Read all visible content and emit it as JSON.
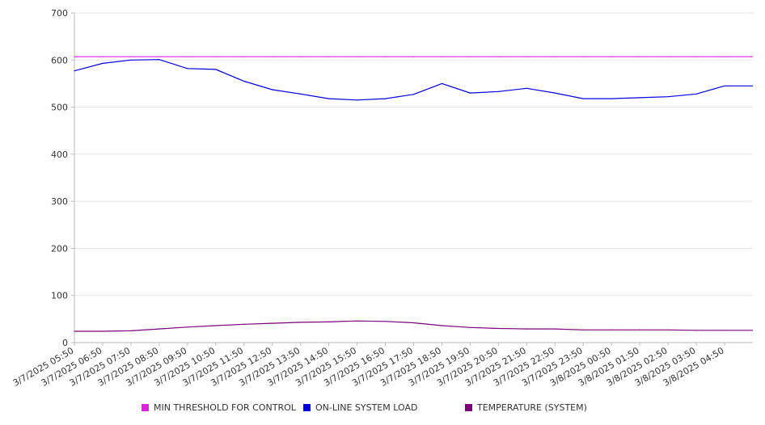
{
  "chart_data": {
    "type": "line",
    "title": "",
    "xlabel": "",
    "ylabel": "",
    "ylim": [
      0,
      700
    ],
    "yticks": [
      0,
      100,
      200,
      300,
      400,
      500,
      600,
      700
    ],
    "grid": true,
    "legend_position": "bottom",
    "x": [
      "3/7/2025 05:50",
      "3/7/2025 06:50",
      "3/7/2025 07:50",
      "3/7/2025 08:50",
      "3/7/2025 09:50",
      "3/7/2025 10:50",
      "3/7/2025 11:50",
      "3/7/2025 12:50",
      "3/7/2025 13:50",
      "3/7/2025 14:50",
      "3/7/2025 15:50",
      "3/7/2025 16:50",
      "3/7/2025 17:50",
      "3/7/2025 18:50",
      "3/7/2025 19:50",
      "3/7/2025 20:50",
      "3/7/2025 21:50",
      "3/7/2025 22:50",
      "3/7/2025 23:50",
      "3/8/2025 00:50",
      "3/8/2025 01:50",
      "3/8/2025 02:50",
      "3/8/2025 03:50",
      "3/8/2025 04:50"
    ],
    "series": [
      {
        "name": "MIN THRESHOLD FOR CONTROL",
        "color": "#e020e0",
        "values": [
          607,
          607,
          607,
          607,
          607,
          607,
          607,
          607,
          607,
          607,
          607,
          607,
          607,
          607,
          607,
          607,
          607,
          607,
          607,
          607,
          607,
          607,
          607,
          607
        ]
      },
      {
        "name": "ON-LINE SYSTEM LOAD",
        "color": "#0000dd",
        "values": [
          577,
          593,
          600,
          601,
          582,
          580,
          555,
          537,
          528,
          518,
          515,
          518,
          527,
          550,
          530,
          533,
          540,
          530,
          518,
          518,
          520,
          522,
          528,
          545
        ]
      },
      {
        "name": "TEMPERATURE (SYSTEM)",
        "color": "#7b007b",
        "values": [
          24,
          24,
          25,
          29,
          33,
          36,
          39,
          41,
          43,
          44,
          46,
          45,
          42,
          36,
          32,
          30,
          29,
          29,
          27,
          27,
          27,
          27,
          26,
          26
        ]
      }
    ]
  }
}
